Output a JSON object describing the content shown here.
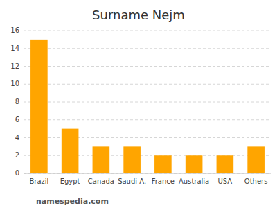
{
  "chart_data": {
    "type": "bar",
    "title": "Surname Nejm",
    "categories": [
      "Brazil",
      "Egypt",
      "Canada",
      "Saudi A.",
      "France",
      "Australia",
      "USA",
      "Others"
    ],
    "values": [
      15,
      5,
      3,
      3,
      2,
      2,
      2,
      3
    ],
    "color": "#FFA500",
    "ylim": [
      0,
      16
    ],
    "yticks": [
      0,
      2,
      4,
      6,
      8,
      10,
      12,
      14,
      16
    ],
    "grid": true,
    "annotations": [
      "namespedia.com"
    ]
  }
}
